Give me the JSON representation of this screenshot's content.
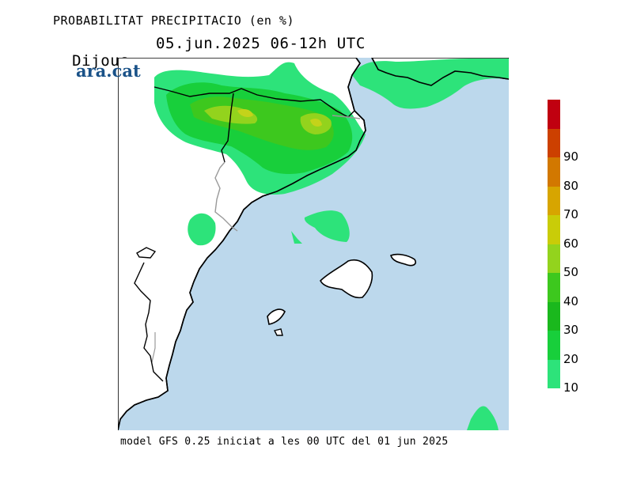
{
  "header": {
    "title": "PROBABILITAT PRECIPITACIO (en %)",
    "day": "Dijous",
    "datetime": "05.jun.2025 06-12h UTC"
  },
  "logo": {
    "text": "ara.cat",
    "color": "#1a5288"
  },
  "footer": {
    "text": "model GFS 0.25 iniciat a les 00 UTC del 01 jun 2025"
  },
  "map": {
    "sea_color": "#bcd8ec",
    "land_color": "#ffffff",
    "coast_color": "#000000",
    "border_color": "#999999"
  },
  "legend": {
    "levels": [
      {
        "value": "10",
        "color": "#2de37a"
      },
      {
        "value": "20",
        "color": "#18cf3b"
      },
      {
        "value": "30",
        "color": "#1ab81d"
      },
      {
        "value": "40",
        "color": "#3dc81e"
      },
      {
        "value": "50",
        "color": "#93d31d"
      },
      {
        "value": "60",
        "color": "#c9cc08"
      },
      {
        "value": "70",
        "color": "#d7a500"
      },
      {
        "value": "80",
        "color": "#d27800"
      },
      {
        "value": "90",
        "color": "#cc4000"
      },
      {
        "value": "",
        "color": "#c00010"
      }
    ]
  }
}
